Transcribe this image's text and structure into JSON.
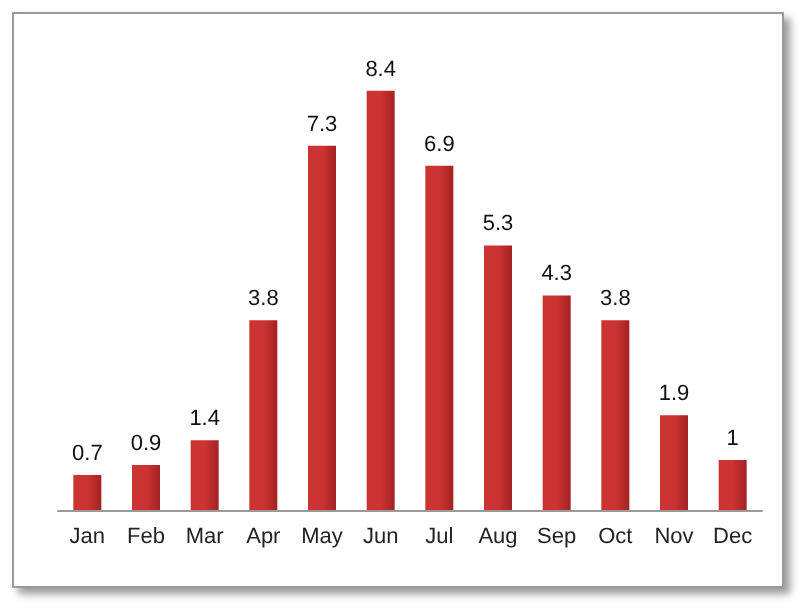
{
  "chart_data": {
    "type": "bar",
    "categories": [
      "Jan",
      "Feb",
      "Mar",
      "Apr",
      "May",
      "Jun",
      "Jul",
      "Aug",
      "Sep",
      "Oct",
      "Nov",
      "Dec"
    ],
    "values": [
      0.7,
      0.9,
      1.4,
      3.8,
      7.3,
      8.4,
      6.9,
      5.3,
      4.3,
      3.8,
      1.9,
      1
    ],
    "color": "#cc3333",
    "data_labels": true
  }
}
